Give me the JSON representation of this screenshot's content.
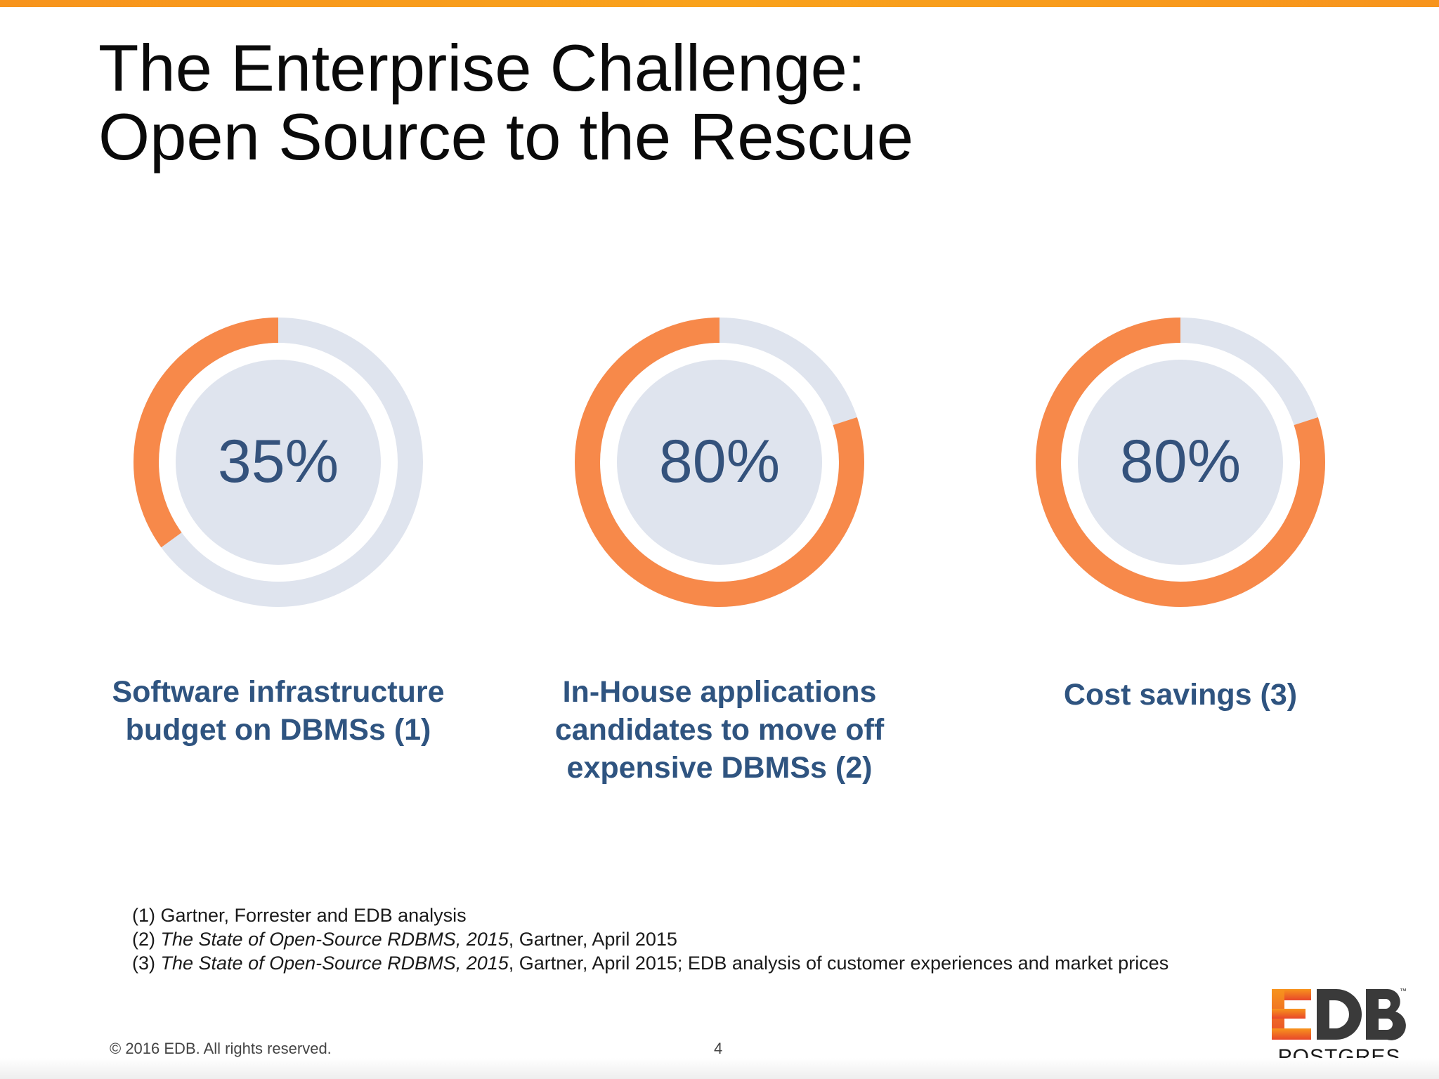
{
  "slide": {
    "title_line1": "The Enterprise Challenge:",
    "title_line2": "Open Source to the Rescue",
    "colors": {
      "accent": "#f7894a",
      "track": "#dfe4ee",
      "inner": "#dfe4ee",
      "value_text": "#34527c",
      "label_text": "#2f5480",
      "top_bar": "#f7941d"
    }
  },
  "chart_data": [
    {
      "type": "pie",
      "categories": [
        "",
        ""
      ],
      "values": [
        35,
        65
      ],
      "value_label": "35%",
      "title": "Software infrastructure budget on DBMSs (1)"
    },
    {
      "type": "pie",
      "categories": [
        "",
        ""
      ],
      "values": [
        80,
        20
      ],
      "value_label": "80%",
      "title": "In-House applications candidates to move off expensive DBMSs (2)"
    },
    {
      "type": "pie",
      "categories": [
        "",
        ""
      ],
      "values": [
        80,
        20
      ],
      "value_label": "80%",
      "title": "Cost savings (3)"
    }
  ],
  "footnotes": {
    "n1": {
      "prefix": "(1) Gartner, Forrester and EDB analysis",
      "italic": "",
      "suffix": ""
    },
    "n2": {
      "prefix": "(2) ",
      "italic": "The State of Open-Source RDBMS, 2015",
      "suffix": ", Gartner, April 2015"
    },
    "n3": {
      "prefix": "(3) ",
      "italic": "The State of Open-Source RDBMS, 2015",
      "suffix": ", Gartner, April 2015; EDB analysis of customer experiences and market prices"
    }
  },
  "footer": {
    "copyright": "© 2016 EDB. All rights reserved.",
    "page_number": "4"
  },
  "logo": {
    "text_main": "EDB",
    "text_sub": "POSTGRES",
    "trademark": "™",
    "icon": "edb-postgres-logo-icon"
  }
}
